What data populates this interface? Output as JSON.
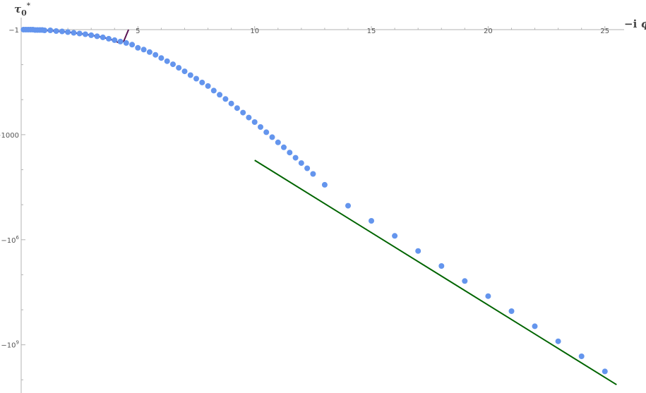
{
  "chart_data": {
    "type": "scatter",
    "title": "",
    "xlabel_prefix": "−i",
    "xlabel_symbol": "ϕ",
    "ylabel_symbol": "τ",
    "ylabel_sub": "0",
    "ylabel_sup": "*",
    "y_scale": "negative-log10",
    "xlim": [
      0,
      25.5
    ],
    "ylim_log10_magnitude": [
      0,
      10.5
    ],
    "grid": false,
    "legend": "none",
    "colors": {
      "points": "#6495ED",
      "series_short": "#3B2F9E",
      "series_short_tail": "#5B1454",
      "series_asymptote": "#006400",
      "axis": "#b3b3b3"
    },
    "x_ticks": [
      {
        "value": 5,
        "label": "5"
      },
      {
        "value": 10,
        "label": "10"
      },
      {
        "value": 15,
        "label": "15"
      },
      {
        "value": 20,
        "label": "20"
      },
      {
        "value": 25,
        "label": "25"
      }
    ],
    "y_ticks": [
      {
        "log10": 0,
        "label": "−1"
      },
      {
        "log10": 3,
        "label": "−1000"
      },
      {
        "log10": 6,
        "label": "−10",
        "sup": "6"
      },
      {
        "log10": 9,
        "label": "−10",
        "sup": "9"
      }
    ],
    "y_minor_ticks_log10": [
      1,
      2,
      4,
      5,
      7,
      8,
      10
    ],
    "x_minor_tick_step": 1,
    "scatter_points": {
      "x": [
        0.1,
        0.2,
        0.3,
        0.4,
        0.5,
        0.6,
        0.7,
        0.8,
        0.9,
        1.0,
        1.25,
        1.5,
        1.75,
        2.0,
        2.25,
        2.5,
        2.75,
        3.0,
        3.25,
        3.5,
        3.75,
        4.0,
        4.25,
        4.5,
        4.75,
        5.0,
        5.25,
        5.5,
        5.75,
        6.0,
        6.25,
        6.5,
        6.75,
        7.0,
        7.25,
        7.5,
        7.75,
        8.0,
        8.25,
        8.5,
        8.75,
        9.0,
        9.25,
        9.5,
        9.75,
        10.0,
        10.25,
        10.5,
        10.75,
        11.0,
        11.25,
        11.5,
        11.75,
        12.0,
        12.25,
        12.5,
        13.0,
        14.0,
        15.0,
        16.0,
        17.0,
        18.0,
        19.0,
        20.0,
        21.0,
        22.0,
        23.0,
        24.0,
        25.0
      ],
      "y_log10_magnitude": [
        0.0,
        0.0,
        0.0,
        0.0,
        0.0,
        0.01,
        0.01,
        0.01,
        0.01,
        0.02,
        0.02,
        0.04,
        0.05,
        0.07,
        0.09,
        0.11,
        0.13,
        0.16,
        0.19,
        0.22,
        0.26,
        0.3,
        0.34,
        0.38,
        0.43,
        0.52,
        0.57,
        0.64,
        0.72,
        0.81,
        0.9,
        0.99,
        1.09,
        1.19,
        1.3,
        1.4,
        1.51,
        1.61,
        1.74,
        1.86,
        1.98,
        2.11,
        2.24,
        2.37,
        2.51,
        2.64,
        2.78,
        2.93,
        3.07,
        3.22,
        3.36,
        3.51,
        3.66,
        3.81,
        3.96,
        4.12,
        4.43,
        5.03,
        5.46,
        5.89,
        6.32,
        6.75,
        7.18,
        7.61,
        8.04,
        8.47,
        8.9,
        9.33,
        9.76
      ]
    },
    "series": [
      {
        "x": [
          0.1,
          0.5,
          1.0,
          1.5,
          2.0,
          2.5,
          3.0,
          3.25,
          3.5,
          3.75,
          4.0,
          4.2,
          4.3,
          4.4,
          4.5,
          4.6
        ],
        "y_log10_magnitude": [
          0.0,
          0.0,
          0.02,
          0.04,
          0.07,
          0.11,
          0.16,
          0.19,
          0.22,
          0.26,
          0.32,
          0.38,
          0.37,
          0.32,
          0.16,
          0.0
        ]
      },
      {
        "x": [
          10,
          25.5
        ],
        "y_log10_magnitude": [
          3.73,
          10.14
        ]
      }
    ]
  }
}
